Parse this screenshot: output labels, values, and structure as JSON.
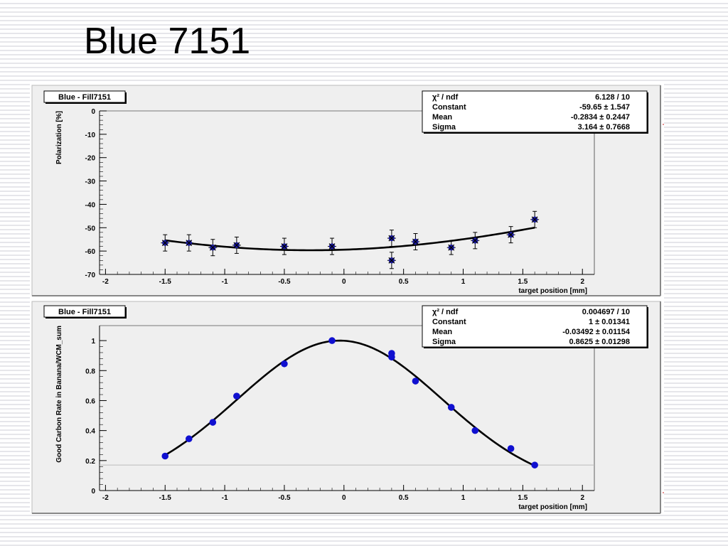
{
  "slide": {
    "title": "Blue 7151"
  },
  "chart_data": [
    {
      "type": "scatter",
      "title": "Blue - Fill7151",
      "xlabel": "target position [mm]",
      "ylabel": "Polarization [%]",
      "xlim": [
        -2.05,
        2.1
      ],
      "ylim": [
        -70,
        0
      ],
      "xticks": [
        -2,
        -1.5,
        -1,
        -0.5,
        0,
        0.5,
        1,
        1.5,
        2
      ],
      "xtick_labels": [
        "-2",
        "-1.5",
        "-1",
        "-0.5",
        "0",
        "0.5",
        "1",
        "1.5",
        "2"
      ],
      "yticks": [
        0,
        -10,
        -20,
        -30,
        -40,
        -50,
        -60,
        -70
      ],
      "ytick_labels": [
        "0",
        "-10",
        "-20",
        "-30",
        "-40",
        "-50",
        "-60",
        "-70"
      ],
      "points": [
        {
          "x": -1.5,
          "y": -56.5,
          "err": 3.5
        },
        {
          "x": -1.3,
          "y": -56.5,
          "err": 3.5
        },
        {
          "x": -1.1,
          "y": -58.5,
          "err": 3.5
        },
        {
          "x": -0.9,
          "y": -57.5,
          "err": 3.5
        },
        {
          "x": -0.5,
          "y": -58.0,
          "err": 3.5
        },
        {
          "x": -0.1,
          "y": -58.0,
          "err": 3.5
        },
        {
          "x": 0.4,
          "y": -54.5,
          "err": 3.5
        },
        {
          "x": 0.4,
          "y": -64.0,
          "err": 3.5
        },
        {
          "x": 0.6,
          "y": -56.0,
          "err": 3.5
        },
        {
          "x": 0.9,
          "y": -58.5,
          "err": 3.0
        },
        {
          "x": 1.1,
          "y": -55.5,
          "err": 3.5
        },
        {
          "x": 1.4,
          "y": -53.0,
          "err": 3.5
        },
        {
          "x": 1.6,
          "y": -46.5,
          "err": 3.5
        }
      ],
      "fit": {
        "constant": -59.65,
        "mean": -0.2834,
        "sigma": 3.164,
        "x_range": [
          -1.5,
          1.6
        ]
      },
      "stats": [
        {
          "label": "χ² / ndf",
          "value": "6.128 / 10"
        },
        {
          "label": "Constant",
          "value": "-59.65  ± 1.547"
        },
        {
          "label": "Mean",
          "value": "-0.2834  ± 0.2447"
        },
        {
          "label": "Sigma",
          "value": "3.164  ± 0.7668"
        }
      ],
      "colors": {
        "marker": "#1a1aa0",
        "fit": "#000000",
        "frame_bg": "#efefef"
      }
    },
    {
      "type": "scatter",
      "title": "Blue - Fill7151",
      "xlabel": "target position [mm]",
      "ylabel": "Good Carbon Rate in Banana/WCM_sum",
      "xlim": [
        -2.05,
        2.1
      ],
      "ylim": [
        0,
        1.1
      ],
      "xticks": [
        -2,
        -1.5,
        -1,
        -0.5,
        0,
        0.5,
        1,
        1.5,
        2
      ],
      "xtick_labels": [
        "-2",
        "-1.5",
        "-1",
        "-0.5",
        "0",
        "0.5",
        "1",
        "1.5",
        "2"
      ],
      "yticks": [
        0,
        0.2,
        0.4,
        0.6,
        0.8,
        1
      ],
      "ytick_labels": [
        "0",
        "0.2",
        "0.4",
        "0.6",
        "0.8",
        "1"
      ],
      "points": [
        {
          "x": -1.5,
          "y": 0.23
        },
        {
          "x": -1.3,
          "y": 0.345
        },
        {
          "x": -1.1,
          "y": 0.455
        },
        {
          "x": -0.9,
          "y": 0.63
        },
        {
          "x": -0.5,
          "y": 0.845
        },
        {
          "x": -0.1,
          "y": 1.0
        },
        {
          "x": 0.4,
          "y": 0.915
        },
        {
          "x": 0.4,
          "y": 0.89
        },
        {
          "x": 0.6,
          "y": 0.73
        },
        {
          "x": 0.9,
          "y": 0.555
        },
        {
          "x": 1.1,
          "y": 0.4
        },
        {
          "x": 1.4,
          "y": 0.28
        },
        {
          "x": 1.6,
          "y": 0.17
        }
      ],
      "fit": {
        "constant": 1,
        "mean": -0.03492,
        "sigma": 0.8625,
        "x_range": [
          -1.5,
          1.6
        ]
      },
      "reference_line_y": 0.17,
      "stats": [
        {
          "label": "χ² / ndf",
          "value": "0.004697 / 10"
        },
        {
          "label": "Constant",
          "value": "1  ± 0.01341"
        },
        {
          "label": "Mean",
          "value": "-0.03492  ± 0.01154"
        },
        {
          "label": "Sigma",
          "value": "0.8625  ± 0.01298"
        }
      ],
      "colors": {
        "marker": "#1010d0",
        "fit": "#000000",
        "reference_line": "#bbbbbb",
        "frame_bg": "#efefef"
      }
    }
  ]
}
